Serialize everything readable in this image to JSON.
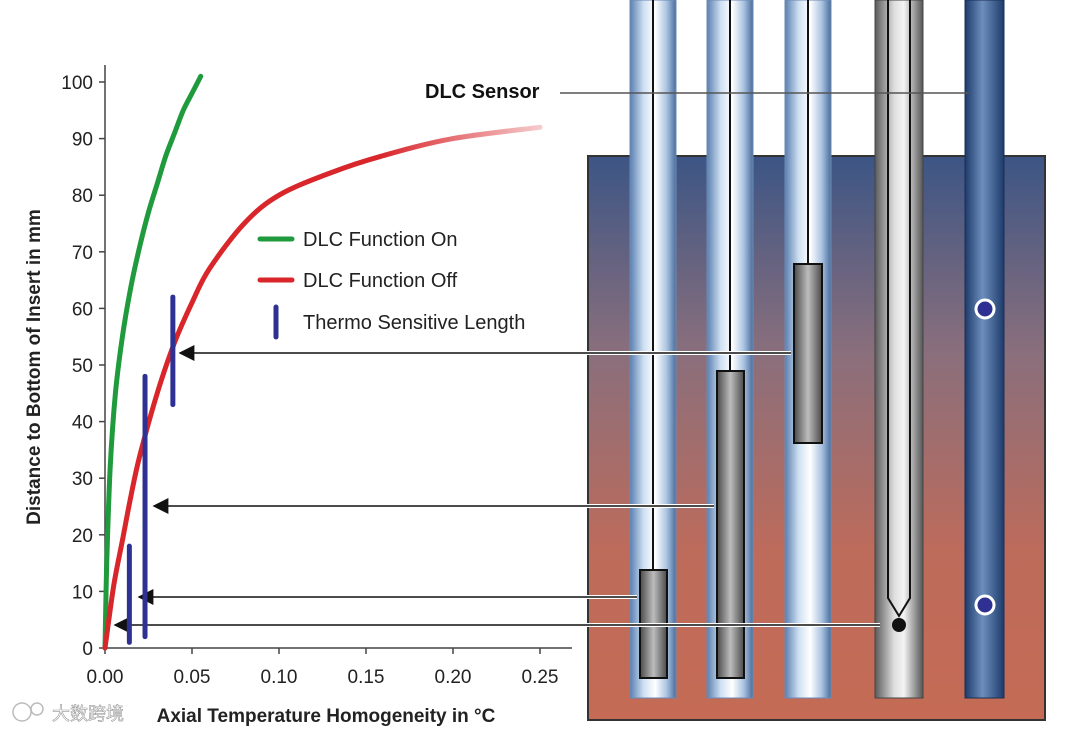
{
  "chart_data": {
    "type": "line",
    "xlabel": "Axial Temperature Homogeneity in °C",
    "ylabel": "Distance to Bottom of Insert in mm",
    "xlim": [
      0,
      0.25
    ],
    "ylim": [
      0,
      100
    ],
    "x_ticks": [
      "0.00",
      "0.05",
      "0.10",
      "0.15",
      "0.20",
      "0.25"
    ],
    "y_ticks": [
      "0",
      "10",
      "20",
      "30",
      "40",
      "50",
      "60",
      "70",
      "80",
      "90",
      "100"
    ],
    "legend_placement": "center",
    "series": [
      {
        "name": "DLC Function On",
        "color": "#1f9a3c",
        "x": [
          0,
          0.001,
          0.003,
          0.006,
          0.01,
          0.015,
          0.02,
          0.025,
          0.03,
          0.035,
          0.04,
          0.045,
          0.05,
          0.055
        ],
        "y": [
          0,
          15,
          32,
          45,
          55,
          64,
          71,
          77,
          82,
          87,
          91,
          95,
          98,
          101
        ]
      },
      {
        "name": "DLC Function Off",
        "color": "#d8262b",
        "x": [
          0,
          0.005,
          0.01,
          0.015,
          0.02,
          0.03,
          0.04,
          0.05,
          0.06,
          0.08,
          0.1,
          0.13,
          0.16,
          0.2,
          0.25
        ],
        "y": [
          0,
          11,
          19,
          27,
          34,
          45,
          54,
          61,
          67,
          75,
          80,
          84,
          87,
          90,
          92
        ]
      }
    ],
    "thermo_sensitive_lengths": {
      "name": "Thermo Sensitive Length",
      "color": "#2e3192",
      "bars": [
        {
          "x": 0.014,
          "y_from": 1,
          "y_to": 18
        },
        {
          "x": 0.023,
          "y_from": 2,
          "y_to": 48
        },
        {
          "x": 0.039,
          "y_from": 43,
          "y_to": 62
        }
      ]
    }
  },
  "diagram": {
    "sensor_label": "DLC Sensor",
    "watermark": "大数跨境"
  }
}
